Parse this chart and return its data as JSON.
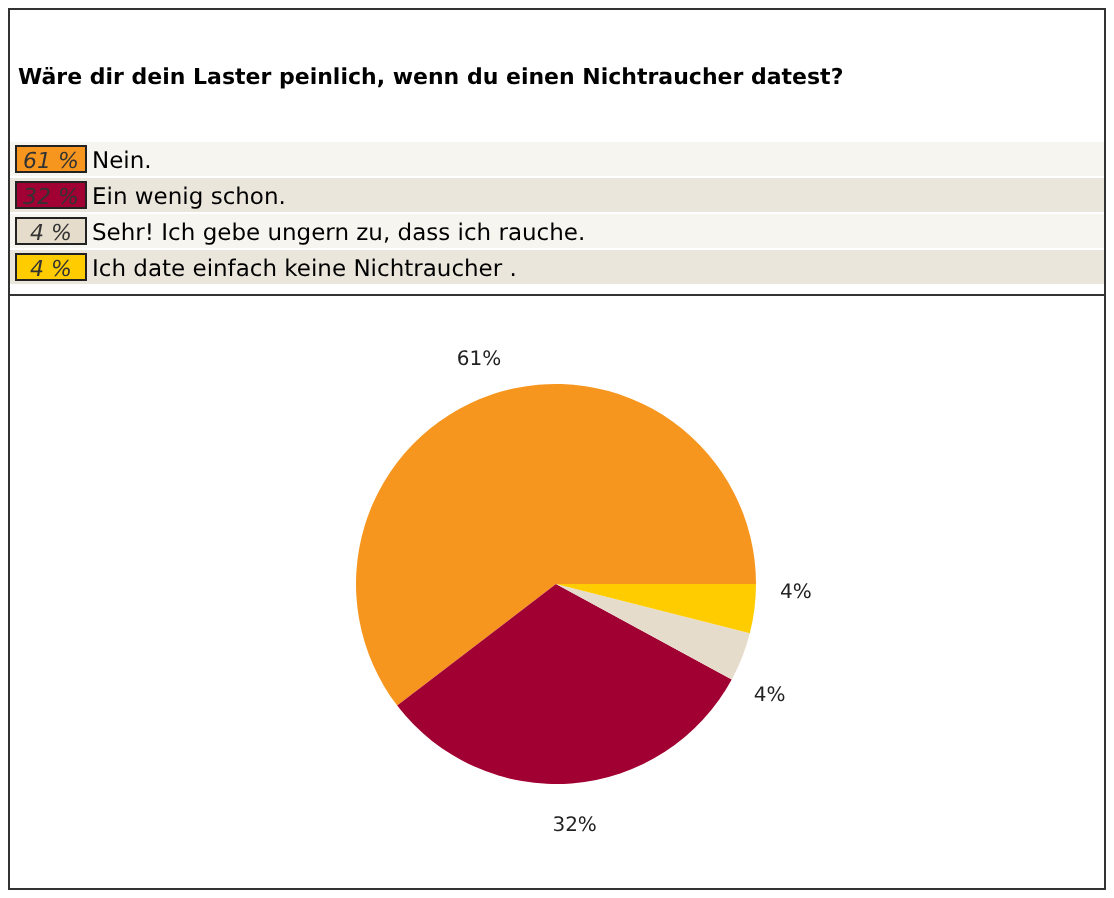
{
  "chart_data": {
    "type": "pie",
    "title": "Wäre dir dein Laster peinlich, wenn du einen Nichtraucher datest?",
    "categories": [
      "Nein.",
      "Ein wenig schon.",
      "Sehr! Ich gebe ungern zu, dass ich rauche.",
      "Ich date einfach keine Nichtraucher ."
    ],
    "values": [
      61,
      32,
      4,
      4
    ],
    "colors": [
      "#f7961e",
      "#a10032",
      "#e6dccb",
      "#ffcc00"
    ],
    "value_labels": [
      "61%",
      "32%",
      "4%",
      "4%"
    ],
    "annotations": [
      "61 %",
      "32 %",
      "4 %",
      "4 %"
    ],
    "legend": "top"
  }
}
